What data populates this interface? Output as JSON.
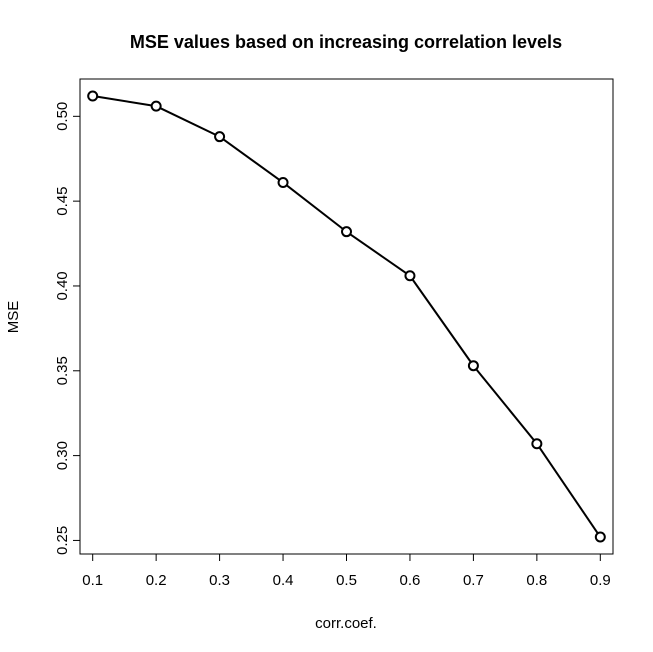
{
  "chart_data": {
    "type": "line",
    "title": "MSE values based on increasing correlation levels",
    "xlabel": "corr.coef.",
    "ylabel": "MSE",
    "x": [
      0.1,
      0.2,
      0.3,
      0.4,
      0.5,
      0.6,
      0.7,
      0.8,
      0.9
    ],
    "series": [
      {
        "values": [
          0.512,
          0.506,
          0.488,
          0.461,
          0.432,
          0.406,
          0.353,
          0.307,
          0.252
        ]
      }
    ],
    "xticks": [
      "0.1",
      "0.2",
      "0.3",
      "0.4",
      "0.5",
      "0.6",
      "0.7",
      "0.8",
      "0.9"
    ],
    "yticks": [
      "0.25",
      "0.30",
      "0.35",
      "0.40",
      "0.45",
      "0.50"
    ],
    "xlim": [
      0.08,
      0.92
    ],
    "ylim": [
      0.242,
      0.522
    ],
    "grid": false,
    "legend": "none",
    "line_color": "#000000",
    "marker": "open-circle"
  }
}
